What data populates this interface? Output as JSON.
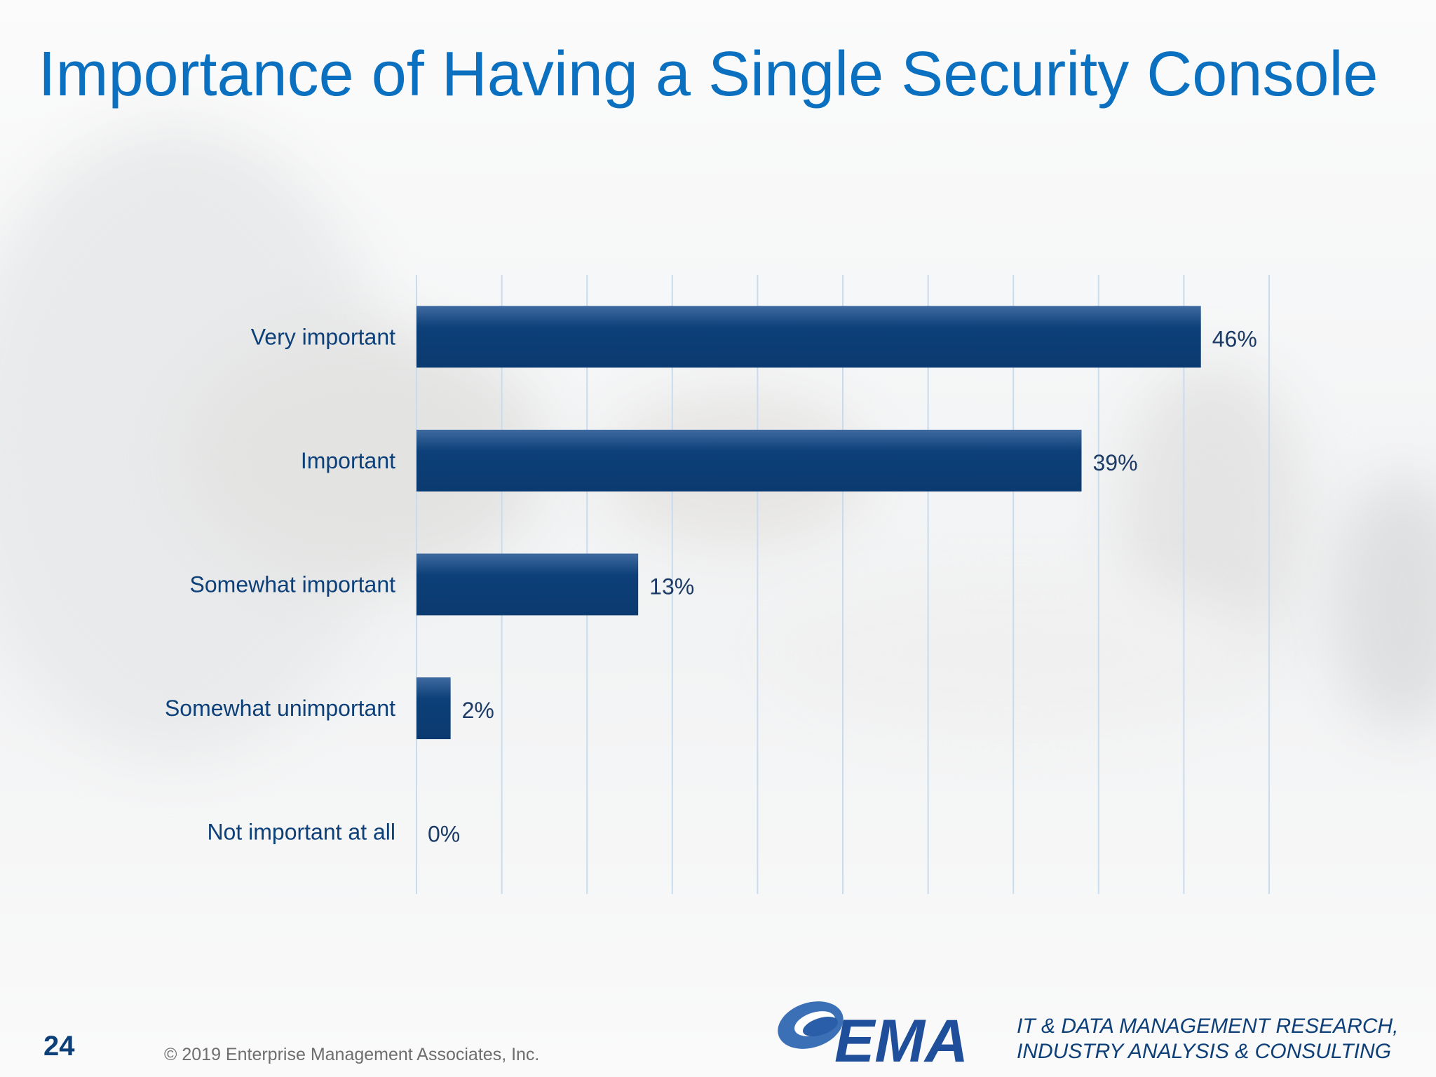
{
  "slide": {
    "page_number": "24",
    "copyright": "© 2019 Enterprise Management Associates, Inc.",
    "logo_text": "EMA",
    "tagline_line1": "IT & DATA MANAGEMENT RESEARCH,",
    "tagline_line2": "INDUSTRY ANALYSIS & CONSULTING",
    "title_color": "#0a70bf",
    "bar_color": "#0d3f78"
  },
  "chart_data": {
    "type": "bar",
    "orientation": "horizontal",
    "title": "Importance of Having a Single Security Console",
    "categories": [
      "Very important",
      "Important",
      "Somewhat important",
      "Somewhat unimportant",
      "Not important at all"
    ],
    "values": [
      46,
      39,
      13,
      2,
      0
    ],
    "value_labels": [
      "46%",
      "39%",
      "13%",
      "2%",
      "0%"
    ],
    "xlim": [
      0,
      50
    ],
    "grid": "vertical",
    "legend": "none"
  }
}
